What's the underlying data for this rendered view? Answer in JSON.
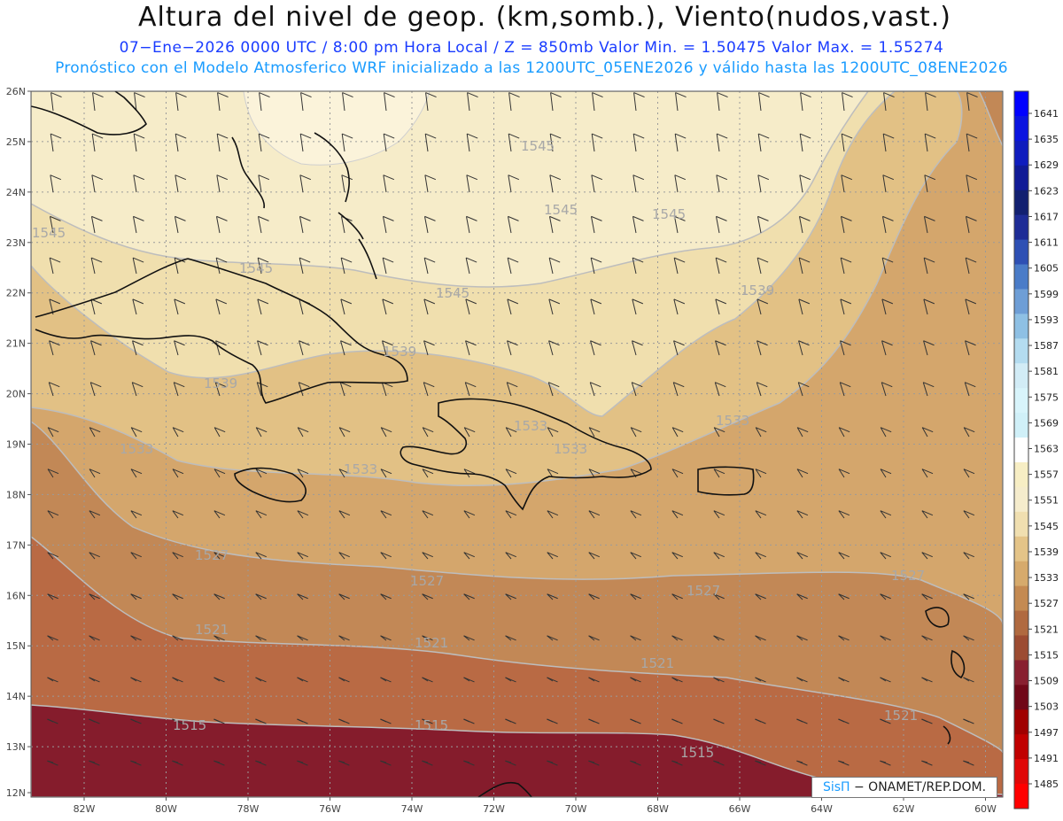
{
  "title": "Altura del nivel de geop. (km,somb.), Viento(nudos,vast.)",
  "subtitle_line1": "07−Ene−2026  0000 UTC / 8:00 pm Hora Local / Z = 850mb    Valor Min. = 1.50475  Valor Max. = 1.55274",
  "subtitle_line2": "Pronóstico con el Modelo Atmosferico WRF inicializado a las 1200UTC_05ENE2026 y válido hasta las  1200UTC_08ENE2026",
  "credit": {
    "brand": "SisΠ",
    "text": " − ONAMET/REP.DOM."
  },
  "lat_labels": [
    "26N",
    "25N",
    "24N",
    "23N",
    "22N",
    "21N",
    "20N",
    "19N",
    "18N",
    "17N",
    "16N",
    "15N",
    "14N",
    "13N",
    "12N"
  ],
  "lon_labels": [
    "82W",
    "80W",
    "78W",
    "76W",
    "74W",
    "72W",
    "70W",
    "68W",
    "66W",
    "64W",
    "62W",
    "60W"
  ],
  "colorbar": {
    "labels": [
      "1641",
      "1635",
      "1629",
      "1623",
      "1617",
      "1611",
      "1605",
      "1599",
      "1593",
      "1587",
      "1581",
      "1575",
      "1569",
      "1563",
      "1557",
      "1551",
      "1545",
      "1539",
      "1533",
      "1527",
      "1521",
      "1515",
      "1509",
      "1503",
      "1497",
      "1491",
      "1485"
    ],
    "colors": [
      "#0000ff",
      "#0a14e0",
      "#0f1cbe",
      "#101a96",
      "#122070",
      "#1e2c96",
      "#2e50b4",
      "#4a7cc8",
      "#6e9ed6",
      "#8ec0e4",
      "#b4dcf0",
      "#d2ecf6",
      "#d8f4fb",
      "#d0f0f8",
      "#ffffff",
      "#f7eec4",
      "#f5eccc",
      "#f0dfb0",
      "#e4c488",
      "#d6aa6c",
      "#c48a52",
      "#b06a40",
      "#9c4c32",
      "#882030",
      "#700818",
      "#a00000",
      "#c00000",
      "#e00808",
      "#ff0000"
    ]
  },
  "contour_labels": [
    "1545",
    "1545",
    "1545",
    "1545",
    "1545",
    "1545",
    "1539",
    "1539",
    "1539",
    "1533",
    "1533",
    "1533",
    "1533",
    "1533",
    "1527",
    "1527",
    "1527",
    "1527",
    "1521",
    "1521",
    "1521",
    "1521",
    "1515",
    "1515",
    "1515"
  ]
}
